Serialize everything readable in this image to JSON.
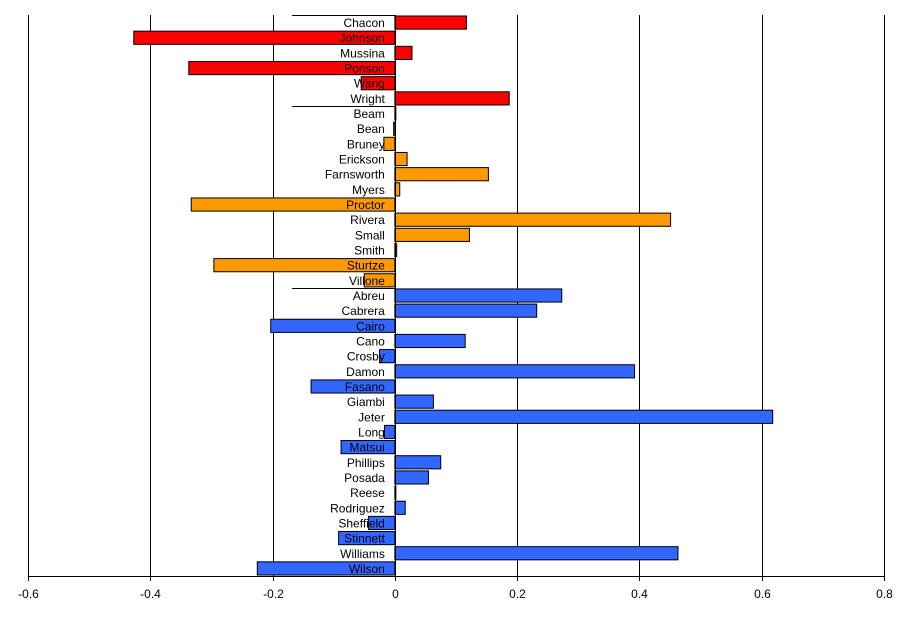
{
  "chart_data": {
    "type": "bar",
    "orientation": "horizontal",
    "title": "",
    "xlabel": "",
    "ylabel": "",
    "xlim": [
      -0.6,
      0.8
    ],
    "xticks": [
      "-0.6",
      "-0.4",
      "-0.2",
      "0",
      "0.2",
      "0.4",
      "0.6",
      "0.8"
    ],
    "xtick_values": [
      -0.6,
      -0.4,
      -0.2,
      0,
      0.2,
      0.4,
      0.6,
      0.8
    ],
    "grid": "vertical",
    "colors": {
      "red": "#ff0000",
      "orange": "#ff9900",
      "blue": "#3366ff",
      "outline": "#000000",
      "grid": "#000000"
    },
    "groups": [
      {
        "color": "red",
        "rows": 6,
        "label_width_value": 0.168
      },
      {
        "color": "orange",
        "rows": 12,
        "label_width_value": 0.168
      },
      {
        "color": "blue",
        "rows": 19,
        "label_width_value": 0.168
      }
    ],
    "categories": [
      "Chacon",
      "Johnson",
      "Mussina",
      "Ponson",
      "Wang",
      "Wright",
      "Beam",
      "Bean",
      "Bruney",
      "Erickson",
      "Farnsworth",
      "Myers",
      "Proctor",
      "Rivera",
      "Small",
      "Smith",
      "Sturtze",
      "Villone",
      "Abreu",
      "Cabrera",
      "Cairo",
      "Cano",
      "Crosby",
      "Damon",
      "Fasano",
      "Giambi",
      "Jeter",
      "Long",
      "Matsui",
      "Phillips",
      "Posada",
      "Reese",
      "Rodriguez",
      "Sheffield",
      "Stinnett",
      "Williams",
      "Wilson"
    ],
    "bar_colors": [
      "red",
      "red",
      "red",
      "red",
      "red",
      "red",
      "orange",
      "orange",
      "orange",
      "orange",
      "orange",
      "orange",
      "orange",
      "orange",
      "orange",
      "orange",
      "orange",
      "orange",
      "blue",
      "blue",
      "blue",
      "blue",
      "blue",
      "blue",
      "blue",
      "blue",
      "blue",
      "blue",
      "blue",
      "blue",
      "blue",
      "blue",
      "blue",
      "blue",
      "blue",
      "blue",
      "blue"
    ],
    "values": [
      0.117,
      -0.427,
      0.028,
      -0.337,
      -0.055,
      0.187,
      0.0,
      -0.002,
      -0.018,
      0.02,
      0.153,
      0.008,
      -0.333,
      0.451,
      0.122,
      0.003,
      -0.296,
      -0.05,
      0.273,
      0.232,
      -0.203,
      0.115,
      -0.025,
      0.392,
      -0.137,
      0.063,
      0.618,
      -0.017,
      -0.088,
      0.075,
      0.055,
      0.0,
      0.017,
      -0.043,
      -0.092,
      0.463,
      -0.225
    ]
  }
}
